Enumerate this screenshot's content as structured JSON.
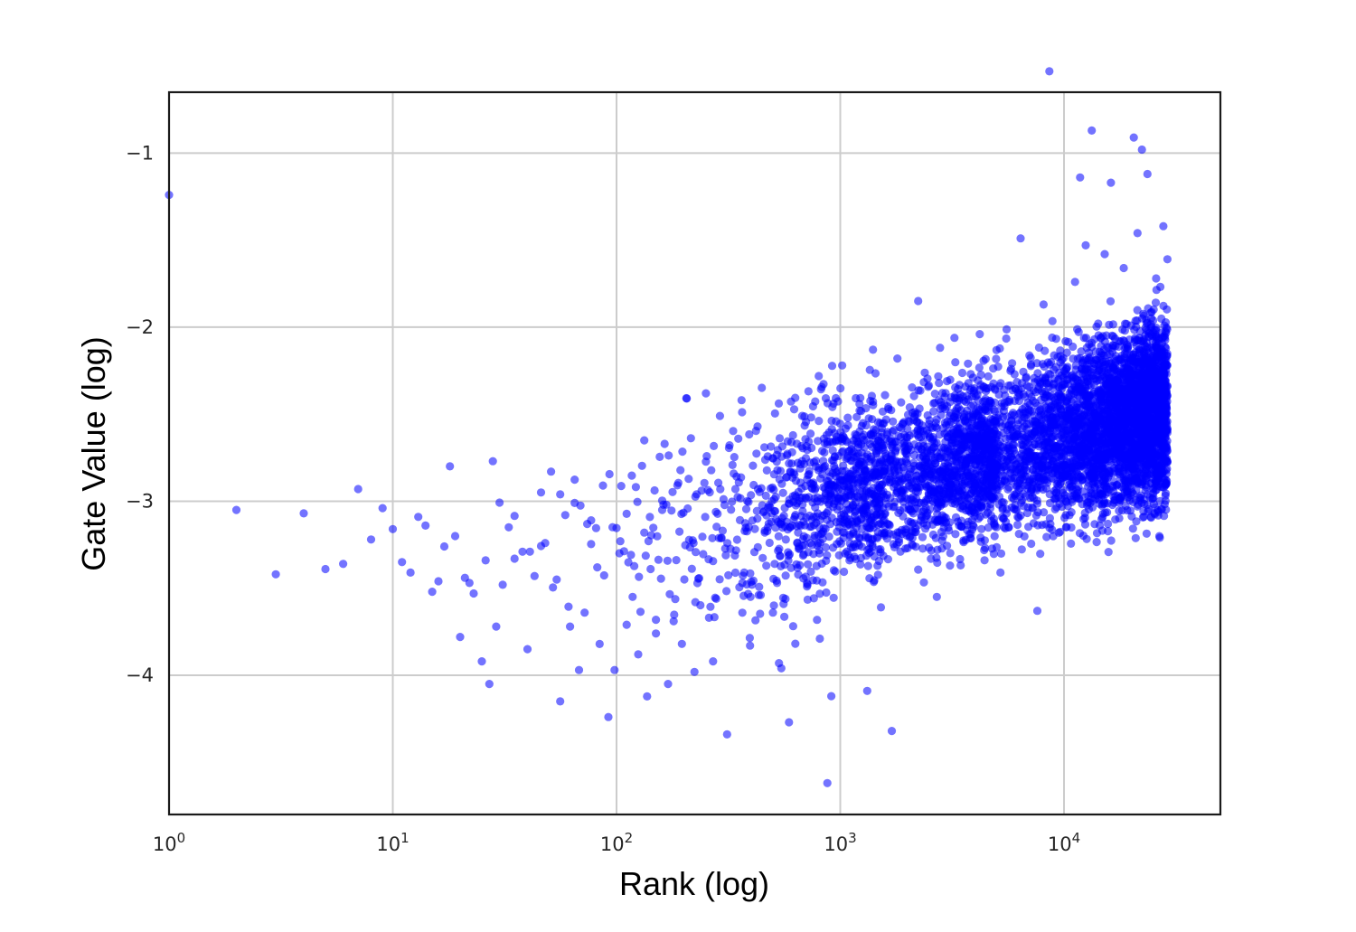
{
  "chart_data": {
    "type": "scatter",
    "title": "",
    "xlabel": "Rank (log)",
    "ylabel": "Gate Value (log)",
    "x_scale": "log10",
    "xlim": [
      1,
      50000
    ],
    "ylim": [
      -4.8,
      -0.65
    ],
    "grid": true,
    "legend": "none",
    "point_color": "#0000ff",
    "point_opacity": 0.55,
    "x_ticks": [
      {
        "value": 1,
        "base": "10",
        "exp": "0"
      },
      {
        "value": 10,
        "base": "10",
        "exp": "1"
      },
      {
        "value": 100,
        "base": "10",
        "exp": "2"
      },
      {
        "value": 1000,
        "base": "10",
        "exp": "3"
      },
      {
        "value": 10000,
        "base": "10",
        "exp": "4"
      }
    ],
    "y_ticks": [
      {
        "value": -1,
        "label": "−1"
      },
      {
        "value": -2,
        "label": "−2"
      },
      {
        "value": -3,
        "label": "−3"
      },
      {
        "value": -4,
        "label": "−4"
      }
    ],
    "series": [
      {
        "values": [
          [
            1,
            -1.24
          ],
          [
            2,
            -3.05
          ],
          [
            3,
            -3.42
          ],
          [
            4,
            -3.07
          ],
          [
            5,
            -3.39
          ],
          [
            6,
            -3.36
          ],
          [
            7,
            -2.93
          ],
          [
            8,
            -3.22
          ],
          [
            9,
            -3.04
          ],
          [
            10,
            -3.16
          ],
          [
            11,
            -3.35
          ],
          [
            12,
            -3.41
          ],
          [
            13,
            -3.09
          ],
          [
            14,
            -3.14
          ],
          [
            15,
            -3.52
          ],
          [
            16,
            -3.46
          ],
          [
            17,
            -3.26
          ],
          [
            18,
            -2.8
          ],
          [
            19,
            -3.2
          ],
          [
            20,
            -3.78
          ],
          [
            21,
            -3.44
          ],
          [
            22,
            -3.47
          ],
          [
            23,
            -3.53
          ],
          [
            25,
            -3.92
          ],
          [
            26,
            -3.34
          ],
          [
            27,
            -4.05
          ],
          [
            28,
            -2.77
          ],
          [
            29,
            -3.72
          ],
          [
            31,
            -3.48
          ],
          [
            33,
            -3.15
          ],
          [
            35,
            -3.33
          ],
          [
            38,
            -3.29
          ],
          [
            40,
            -3.85
          ],
          [
            43,
            -3.43
          ],
          [
            46,
            -2.95
          ],
          [
            48,
            -3.24
          ],
          [
            51,
            -2.83
          ],
          [
            54,
            -3.45
          ],
          [
            56,
            -4.15
          ],
          [
            59,
            -3.08
          ],
          [
            62,
            -3.72
          ],
          [
            65,
            -3.01
          ],
          [
            68,
            -3.97
          ],
          [
            72,
            -3.64
          ],
          [
            77,
            -3.11
          ],
          [
            82,
            -3.38
          ],
          [
            87,
            -2.91
          ],
          [
            92,
            -4.24
          ],
          [
            98,
            -3.97
          ],
          [
            104,
            -3.23
          ],
          [
            111,
            -3.71
          ],
          [
            118,
            -3.55
          ],
          [
            125,
            -3.88
          ],
          [
            133,
            -2.65
          ],
          [
            142,
            -3.39
          ],
          [
            150,
            -3.76
          ],
          [
            160,
            -3.05
          ],
          [
            170,
            -4.05
          ],
          [
            180,
            -3.69
          ],
          [
            196,
            -3.82
          ],
          [
            206,
            -2.41
          ],
          [
            225,
            -3.58
          ],
          [
            251,
            -2.38
          ],
          [
            270,
            -3.92
          ],
          [
            290,
            -2.51
          ],
          [
            312,
            -4.34
          ],
          [
            340,
            -2.93
          ],
          [
            365,
            -3.47
          ],
          [
            395,
            -3.83
          ],
          [
            427,
            -2.57
          ],
          [
            460,
            -3.18
          ],
          [
            500,
            -3.64
          ],
          [
            545,
            -3.96
          ],
          [
            590,
            -4.27
          ],
          [
            640,
            -2.67
          ],
          [
            710,
            -3.49
          ],
          [
            760,
            -3.09
          ],
          [
            810,
            -3.79
          ],
          [
            875,
            -4.62
          ],
          [
            912,
            -4.12
          ],
          [
            950,
            -2.91
          ],
          [
            1020,
            -2.22
          ],
          [
            1100,
            -3.34
          ],
          [
            1220,
            -2.48
          ],
          [
            1320,
            -4.09
          ],
          [
            1400,
            -2.13
          ],
          [
            1520,
            -3.61
          ],
          [
            1600,
            -2.98
          ],
          [
            1700,
            -4.32
          ],
          [
            1800,
            -2.18
          ],
          [
            2000,
            -3.27
          ],
          [
            2230,
            -1.85
          ],
          [
            2450,
            -2.72
          ],
          [
            2700,
            -3.55
          ],
          [
            3000,
            -2.31
          ],
          [
            3400,
            -3.14
          ],
          [
            3800,
            -2.62
          ],
          [
            4200,
            -2.04
          ],
          [
            4700,
            -2.87
          ],
          [
            5200,
            -3.41
          ],
          [
            5800,
            -2.24
          ],
          [
            6400,
            -1.49
          ],
          [
            7100,
            -2.95
          ],
          [
            7600,
            -3.63
          ],
          [
            8100,
            -1.87
          ],
          [
            8600,
            -0.53
          ],
          [
            9300,
            -2.56
          ],
          [
            10200,
            -3.08
          ],
          [
            11200,
            -1.74
          ],
          [
            11800,
            -1.14
          ],
          [
            12500,
            -1.53
          ],
          [
            13300,
            -0.87
          ],
          [
            14200,
            -2.38
          ],
          [
            15200,
            -1.58
          ],
          [
            16200,
            -1.17
          ],
          [
            17200,
            -2.91
          ],
          [
            18500,
            -1.66
          ],
          [
            19800,
            -2.19
          ],
          [
            20500,
            -0.91
          ],
          [
            21300,
            -1.46
          ],
          [
            22300,
            -0.98
          ],
          [
            23600,
            -1.12
          ],
          [
            24800,
            -2.71
          ],
          [
            25800,
            -1.72
          ],
          [
            26800,
            -3.21
          ],
          [
            27800,
            -1.42
          ],
          [
            28600,
            -2.44
          ],
          [
            29000,
            -1.61
          ]
        ]
      }
    ]
  }
}
